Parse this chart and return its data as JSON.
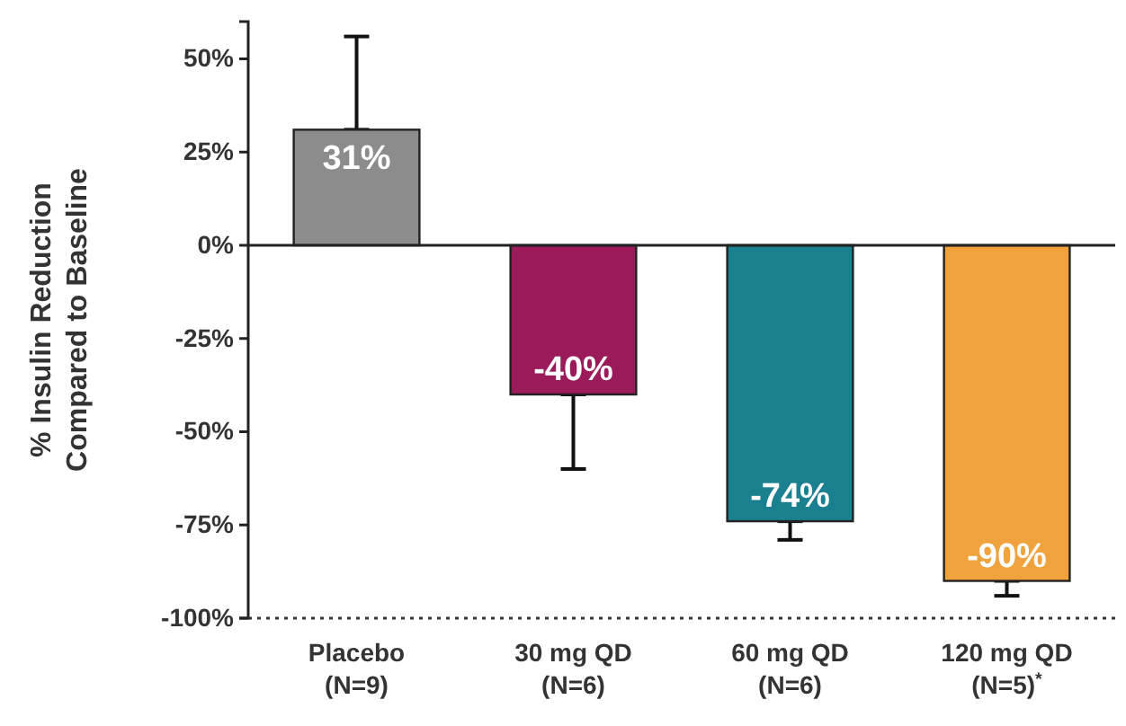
{
  "chart_data": {
    "type": "bar",
    "ylabel": "% Insulin Reduction\nCompared to Baseline",
    "categories": [
      "Placebo\n(N=9)",
      "30 mg QD\n(N=6)",
      "60 mg QD\n(N=6)",
      "120 mg QD\n(N=5)$^{*}$"
    ],
    "values": [
      31,
      -40,
      -74,
      -90
    ],
    "colors": [
      "#8c8c8c",
      "#9b1b5a",
      "#1a7f8e",
      "#f0a33c"
    ],
    "value_labels": [
      "31%",
      "-40%",
      "-74%",
      "-90%"
    ],
    "errors": [
      [
        31,
        56
      ],
      [
        -60,
        -40
      ],
      [
        -79,
        -74
      ],
      [
        -94,
        -90
      ]
    ],
    "ylim": [
      -100,
      60
    ],
    "yticks": [
      {
        "value": -100,
        "label": "-100%"
      },
      {
        "value": -75,
        "label": "-75%"
      },
      {
        "value": -50,
        "label": "-50%"
      },
      {
        "value": -25,
        "label": "-25%"
      },
      {
        "value": 0,
        "label": "0%"
      },
      {
        "value": 25,
        "label": "25%"
      },
      {
        "value": 50,
        "label": "50%"
      }
    ],
    "relative": false
  }
}
